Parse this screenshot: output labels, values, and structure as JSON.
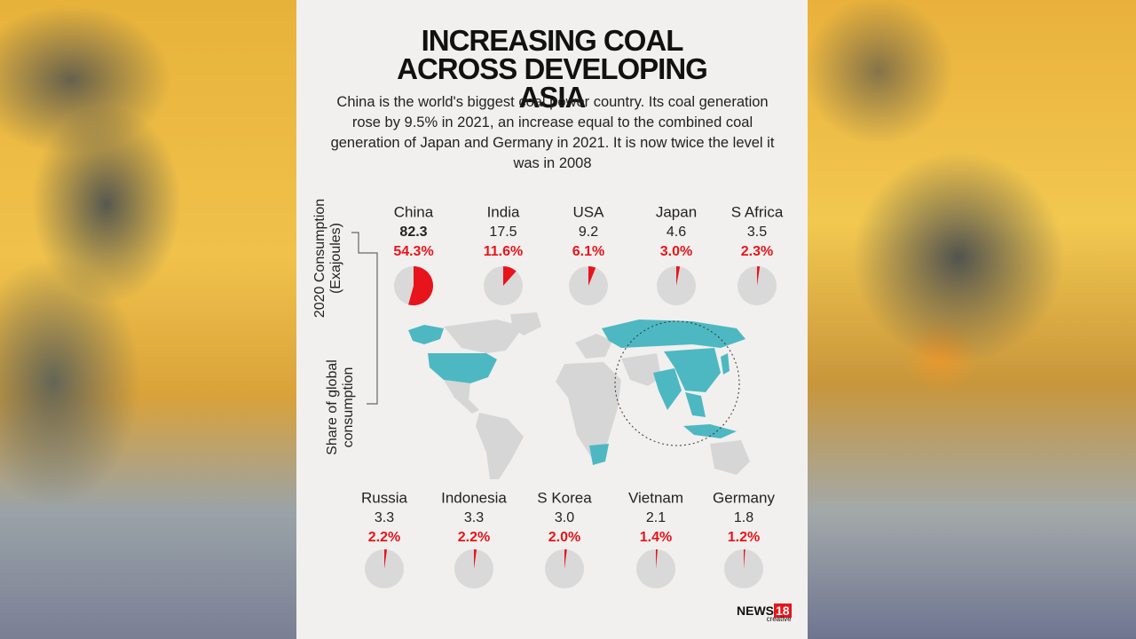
{
  "chart_data": {
    "type": "pie",
    "title": "INCREASING COAL ACROSS DEVELOPING ASIA",
    "subtitle": "China is the world's biggest coal power country. Its coal generation rose by 9.5% in 2021, an increase equal to the combined coal generation of Japan and Germany in 2021. It is now twice the level it was in 2008",
    "categories": [
      "China",
      "India",
      "USA",
      "Japan",
      "S Africa",
      "Russia",
      "Indonesia",
      "S Korea",
      "Vietnam",
      "Germany"
    ],
    "series": [
      {
        "name": "2020 Consumption (Exajoules)",
        "values": [
          82.3,
          17.5,
          9.2,
          4.6,
          3.5,
          3.3,
          3.3,
          3.0,
          2.1,
          1.8
        ],
        "value_labels": [
          "82.3",
          "17.5",
          "9.2",
          "4.6",
          "3.5",
          "3.3",
          "3.3",
          "3.0",
          "2.1",
          "1.8"
        ]
      },
      {
        "name": "Share of global consumption",
        "color": "#e8141b",
        "values": [
          54.3,
          11.6,
          6.1,
          3.0,
          2.3,
          2.2,
          2.2,
          2.0,
          1.4,
          1.2
        ],
        "value_labels": [
          "54.3%",
          "11.6%",
          "6.1%",
          "3.0%",
          "2.3%",
          "2.2%",
          "2.2%",
          "2.0%",
          "1.4%",
          "1.2%"
        ]
      }
    ],
    "brand": {
      "name": "NEWS",
      "number": "18",
      "tag": "creative"
    }
  }
}
